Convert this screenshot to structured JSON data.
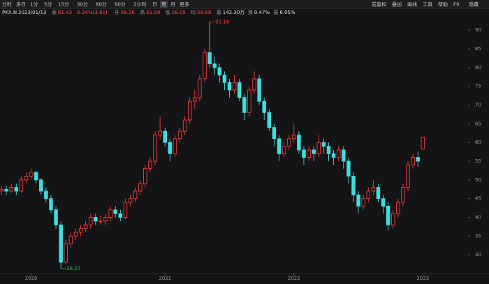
{
  "toolbar": {
    "left": [
      "分时",
      "多日",
      "1分",
      "5分",
      "15分",
      "30分",
      "60分",
      "90分",
      "2小时",
      "日",
      "周",
      "月",
      "更多"
    ],
    "selected": 10,
    "right": [
      "前复权",
      "叠加",
      "画线",
      "工具",
      "帮助",
      "F9",
      "隐藏"
    ]
  },
  "header": {
    "symbol": "PKX.N",
    "date": "2023/01/13",
    "fields": [
      {
        "label": "收",
        "value": "61.43"
      },
      {
        "label": "",
        "value": "6.24%(3.61)"
      },
      {
        "label": "开",
        "value": "58.26"
      },
      {
        "label": "高",
        "value": "61.59"
      },
      {
        "label": "低",
        "value": "58.05"
      },
      {
        "label": "均",
        "value": "58.68"
      },
      {
        "label": "量",
        "value": "142.30万"
      },
      {
        "label": "换",
        "value": "0.47%"
      },
      {
        "label": "振",
        "value": "6.05%"
      }
    ]
  },
  "chart_data": {
    "type": "candlestick",
    "colors": {
      "up": "#ff3b3b",
      "down": "#3fdede"
    },
    "ylim": [
      25,
      93.2
    ],
    "yticks": [
      30,
      35,
      40,
      45,
      50,
      55,
      60,
      65,
      70,
      75,
      80,
      85,
      90
    ],
    "xlim": [
      -0.28,
      92.7
    ],
    "xticks": [
      {
        "value": 6,
        "label": "2020"
      },
      {
        "value": 33,
        "label": "2021"
      },
      {
        "value": 59,
        "label": "2022"
      },
      {
        "value": 85,
        "label": "2023"
      }
    ],
    "candles": [
      [
        47,
        48.5,
        46,
        47.5
      ],
      [
        47.5,
        48.5,
        46,
        47
      ],
      [
        47,
        49,
        46.5,
        48
      ],
      [
        48,
        49,
        46,
        47
      ],
      [
        47,
        51,
        46.5,
        50
      ],
      [
        50,
        52,
        49,
        51
      ],
      [
        51,
        53,
        50,
        52
      ],
      [
        52,
        52.5,
        49,
        50
      ],
      [
        50,
        50.5,
        46,
        47
      ],
      [
        47,
        48,
        44,
        45
      ],
      [
        45,
        46,
        41,
        42
      ],
      [
        42,
        43,
        37,
        38
      ],
      [
        38,
        39,
        26.27,
        28
      ],
      [
        28,
        34,
        27.5,
        33
      ],
      [
        33,
        36,
        32,
        35
      ],
      [
        35,
        37,
        34,
        36
      ],
      [
        36,
        38,
        35,
        37
      ],
      [
        37,
        39,
        36,
        38
      ],
      [
        38,
        41,
        37,
        40
      ],
      [
        40,
        41,
        38,
        39
      ],
      [
        39,
        40.5,
        38,
        39
      ],
      [
        39,
        41,
        38,
        40
      ],
      [
        40,
        43,
        39,
        42
      ],
      [
        42,
        43,
        40,
        41
      ],
      [
        41,
        42,
        39,
        40
      ],
      [
        40,
        45,
        39.5,
        44
      ],
      [
        44,
        46,
        43,
        45
      ],
      [
        45,
        48,
        44,
        47
      ],
      [
        47,
        50,
        46,
        49
      ],
      [
        49,
        54,
        48,
        53
      ],
      [
        53,
        56,
        52,
        55
      ],
      [
        55,
        63,
        54,
        62
      ],
      [
        62,
        67,
        61,
        63
      ],
      [
        63,
        64,
        59,
        60
      ],
      [
        60,
        61,
        55,
        57
      ],
      [
        57,
        62,
        56,
        61
      ],
      [
        61,
        64,
        60,
        63
      ],
      [
        63,
        67,
        62,
        66
      ],
      [
        66,
        72,
        65,
        71
      ],
      [
        71,
        74,
        69,
        72
      ],
      [
        72,
        78,
        71,
        77
      ],
      [
        77,
        85,
        76,
        84
      ],
      [
        84,
        92.18,
        80,
        81
      ],
      [
        81,
        83,
        78,
        80
      ],
      [
        80,
        81,
        76,
        78
      ],
      [
        78,
        79,
        74,
        76
      ],
      [
        76,
        77,
        72,
        74
      ],
      [
        74,
        78,
        73,
        76
      ],
      [
        76,
        77,
        71,
        72
      ],
      [
        72,
        73,
        66,
        68
      ],
      [
        68,
        75,
        67,
        74
      ],
      [
        74,
        79,
        73,
        77
      ],
      [
        77,
        78,
        70,
        71
      ],
      [
        71,
        72,
        66,
        68
      ],
      [
        68,
        69,
        63,
        64
      ],
      [
        64,
        65,
        59,
        61
      ],
      [
        61,
        62,
        55,
        57
      ],
      [
        57,
        60,
        56,
        59
      ],
      [
        59,
        62,
        58,
        61
      ],
      [
        61,
        65,
        60,
        62
      ],
      [
        62,
        63,
        57,
        58
      ],
      [
        58,
        59,
        54,
        56
      ],
      [
        56,
        59,
        55,
        58
      ],
      [
        58,
        59,
        55,
        57
      ],
      [
        57,
        62,
        56,
        60
      ],
      [
        60,
        61,
        57,
        59
      ],
      [
        59,
        60,
        55,
        57
      ],
      [
        57,
        58,
        54,
        56
      ],
      [
        56,
        59,
        55,
        58
      ],
      [
        58,
        59,
        53,
        55
      ],
      [
        55,
        56,
        49,
        51
      ],
      [
        51,
        52,
        44,
        46
      ],
      [
        46,
        47,
        41,
        43
      ],
      [
        43,
        46,
        42,
        45
      ],
      [
        45,
        48,
        44,
        47
      ],
      [
        47,
        50,
        46,
        48
      ],
      [
        48,
        49,
        44,
        45
      ],
      [
        45,
        46,
        41,
        43
      ],
      [
        43,
        44,
        36.5,
        38
      ],
      [
        38,
        42,
        37,
        41
      ],
      [
        41,
        45,
        40,
        44
      ],
      [
        44,
        49,
        43,
        48
      ],
      [
        48,
        55,
        47,
        54
      ],
      [
        54,
        57,
        53,
        56
      ],
      [
        56,
        57.5,
        53.5,
        55
      ],
      [
        58.26,
        61.59,
        58.05,
        61.43
      ]
    ],
    "high_marker": 42,
    "low_marker": 12
  }
}
